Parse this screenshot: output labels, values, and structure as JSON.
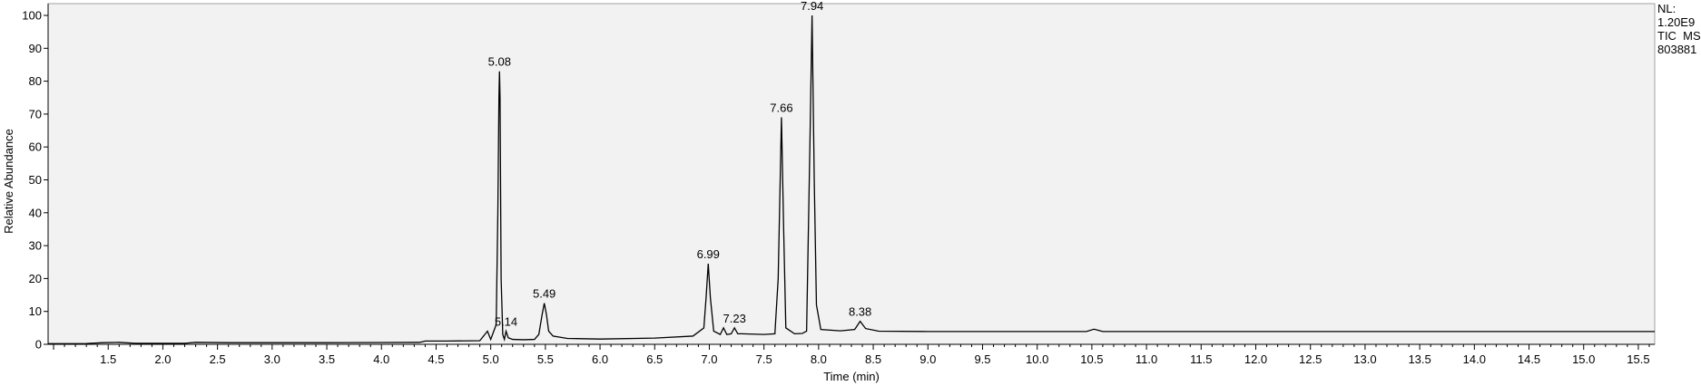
{
  "chart_data": {
    "type": "line",
    "xlabel": "Time (min)",
    "ylabel": "Relative Abundance",
    "xlim": [
      0.95,
      15.65
    ],
    "ylim": [
      0,
      100
    ],
    "x_ticks": [
      "1.5",
      "2.0",
      "2.5",
      "3.0",
      "3.5",
      "4.0",
      "4.5",
      "5.0",
      "5.5",
      "6.0",
      "6.5",
      "7.0",
      "7.5",
      "8.0",
      "8.5",
      "9.0",
      "9.5",
      "10.0",
      "10.5",
      "11.0",
      "11.5",
      "12.0",
      "12.5",
      "13.0",
      "13.5",
      "14.0",
      "14.5",
      "15.0",
      "15.5"
    ],
    "y_ticks": [
      "0",
      "10",
      "20",
      "30",
      "40",
      "50",
      "60",
      "70",
      "80",
      "90",
      "100"
    ],
    "info": [
      "NL:",
      "1.20E9",
      "TIC  MS",
      "803881"
    ],
    "peaks": [
      {
        "label": "5.08",
        "x": 5.08,
        "y": 83
      },
      {
        "label": "5.14",
        "x": 5.14,
        "y": 4
      },
      {
        "label": "5.49",
        "x": 5.49,
        "y": 12.5
      },
      {
        "label": "6.99",
        "x": 6.99,
        "y": 24.5
      },
      {
        "label": "7.23",
        "x": 7.23,
        "y": 5
      },
      {
        "label": "7.66",
        "x": 7.66,
        "y": 69
      },
      {
        "label": "7.94",
        "x": 7.94,
        "y": 100
      },
      {
        "label": "8.38",
        "x": 8.38,
        "y": 7
      }
    ],
    "trace": [
      [
        0.95,
        0.2
      ],
      [
        1.3,
        0.25
      ],
      [
        1.45,
        0.5
      ],
      [
        1.6,
        0.6
      ],
      [
        1.75,
        0.3
      ],
      [
        2.2,
        0.3
      ],
      [
        2.3,
        0.6
      ],
      [
        2.6,
        0.5
      ],
      [
        3.0,
        0.5
      ],
      [
        3.5,
        0.5
      ],
      [
        4.0,
        0.55
      ],
      [
        4.35,
        0.6
      ],
      [
        4.4,
        1.0
      ],
      [
        4.6,
        1.0
      ],
      [
        4.9,
        1.1
      ],
      [
        4.97,
        4.0
      ],
      [
        5.0,
        1.5
      ],
      [
        5.05,
        6
      ],
      [
        5.065,
        40
      ],
      [
        5.075,
        75
      ],
      [
        5.08,
        83
      ],
      [
        5.085,
        75
      ],
      [
        5.095,
        20
      ],
      [
        5.11,
        3
      ],
      [
        5.125,
        1.5
      ],
      [
        5.14,
        4
      ],
      [
        5.16,
        2.0
      ],
      [
        5.2,
        1.5
      ],
      [
        5.3,
        1.4
      ],
      [
        5.4,
        1.5
      ],
      [
        5.44,
        3
      ],
      [
        5.47,
        9
      ],
      [
        5.49,
        12.5
      ],
      [
        5.51,
        9
      ],
      [
        5.53,
        4
      ],
      [
        5.57,
        2.5
      ],
      [
        5.7,
        1.8
      ],
      [
        6.0,
        1.6
      ],
      [
        6.5,
        1.9
      ],
      [
        6.85,
        2.5
      ],
      [
        6.95,
        5
      ],
      [
        6.97,
        14
      ],
      [
        6.99,
        24.5
      ],
      [
        7.01,
        14
      ],
      [
        7.04,
        4
      ],
      [
        7.1,
        3
      ],
      [
        7.13,
        5
      ],
      [
        7.16,
        3
      ],
      [
        7.2,
        3.2
      ],
      [
        7.23,
        5
      ],
      [
        7.26,
        3.2
      ],
      [
        7.3,
        3.2
      ],
      [
        7.5,
        3
      ],
      [
        7.6,
        3.2
      ],
      [
        7.63,
        20
      ],
      [
        7.66,
        69
      ],
      [
        7.68,
        35
      ],
      [
        7.7,
        5
      ],
      [
        7.78,
        3.2
      ],
      [
        7.85,
        3.3
      ],
      [
        7.89,
        4
      ],
      [
        7.92,
        60
      ],
      [
        7.94,
        100
      ],
      [
        7.96,
        50
      ],
      [
        7.98,
        12
      ],
      [
        8.02,
        4.5
      ],
      [
        8.2,
        4.1
      ],
      [
        8.33,
        4.5
      ],
      [
        8.38,
        7
      ],
      [
        8.43,
        4.8
      ],
      [
        8.55,
        4.0
      ],
      [
        9.0,
        3.9
      ],
      [
        10.0,
        3.9
      ],
      [
        10.45,
        3.9
      ],
      [
        10.52,
        4.6
      ],
      [
        10.6,
        3.9
      ],
      [
        11.5,
        3.9
      ],
      [
        13.0,
        3.9
      ],
      [
        15.65,
        3.9
      ]
    ]
  }
}
